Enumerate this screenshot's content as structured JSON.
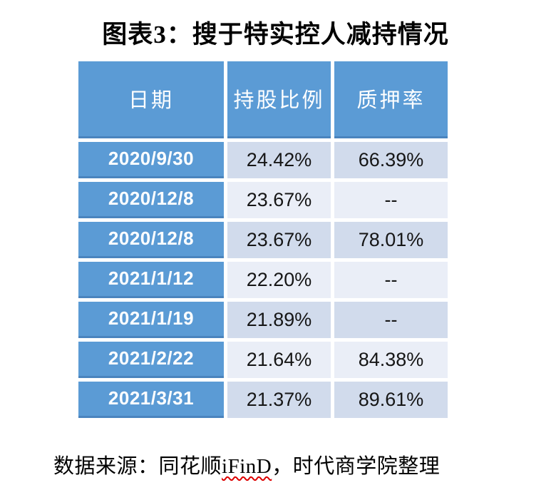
{
  "title": "图表3：搜于特实控人减持情况",
  "table": {
    "headers": [
      "日期",
      "持股比例",
      "质押率"
    ],
    "rows": [
      {
        "date": "2020/9/30",
        "holding": "24.42%",
        "pledge": "66.39%"
      },
      {
        "date": "2020/12/8",
        "holding": "23.67%",
        "pledge": "--"
      },
      {
        "date": "2020/12/8",
        "holding": "23.67%",
        "pledge": "78.01%"
      },
      {
        "date": "2021/1/12",
        "holding": "22.20%",
        "pledge": "--"
      },
      {
        "date": "2021/1/19",
        "holding": "21.89%",
        "pledge": "--"
      },
      {
        "date": "2021/2/22",
        "holding": "21.64%",
        "pledge": "84.38%"
      },
      {
        "date": "2021/3/31",
        "holding": "21.37%",
        "pledge": "89.61%"
      }
    ]
  },
  "source": {
    "prefix": "数据来源：同花顺",
    "ifind": "iFinD",
    "suffix": "，时代商学院整理"
  },
  "colors": {
    "accent_blue": "#5B9BD5",
    "accent_blue_edge": "#4a84be",
    "band_dark": "#D1DBEC",
    "band_light": "#EAEEF7",
    "header_text": "#ffffff",
    "body_text": "#161616",
    "spellcheck_red": "#dd0000"
  },
  "chart_data": {
    "type": "table",
    "title": "图表3：搜于特实控人减持情况",
    "columns": [
      "日期",
      "持股比例",
      "质押率"
    ],
    "rows": [
      [
        "2020/9/30",
        "24.42%",
        "66.39%"
      ],
      [
        "2020/12/8",
        "23.67%",
        "--"
      ],
      [
        "2020/12/8",
        "23.67%",
        "78.01%"
      ],
      [
        "2021/1/12",
        "22.20%",
        "--"
      ],
      [
        "2021/1/19",
        "21.89%",
        "--"
      ],
      [
        "2021/2/22",
        "21.64%",
        "84.38%"
      ],
      [
        "2021/3/31",
        "21.37%",
        "89.61%"
      ]
    ],
    "source_note": "数据来源：同花顺iFinD，时代商学院整理"
  }
}
